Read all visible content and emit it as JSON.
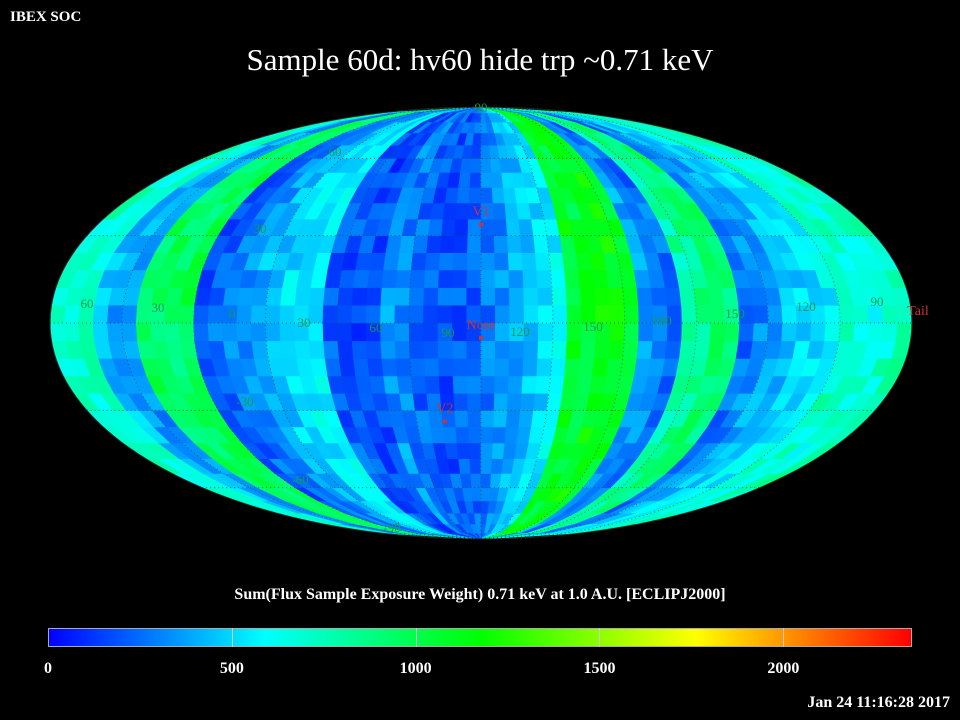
{
  "header": {
    "org_label": "IBEX SOC"
  },
  "map": {
    "title": "Sample 60d: hv60 hide trp ~0.71 keV",
    "projection": "Mollweide",
    "lat_labels": [
      "60",
      "30",
      "-30",
      "-60",
      "90",
      "-90"
    ],
    "lon_labels": [
      "60",
      "30",
      "0",
      "30",
      "60",
      "90",
      "120",
      "150",
      "180",
      "150",
      "120",
      "90"
    ],
    "markers": [
      {
        "label": "V1",
        "lon_deg": 0,
        "lat_deg": 34
      },
      {
        "label": "Nose",
        "lon_deg": 0,
        "lat_deg": -5
      },
      {
        "label": "V2",
        "lon_deg": -17,
        "lat_deg": -34
      },
      {
        "label": "Tail",
        "lon_deg": 180,
        "lat_deg": 0
      }
    ],
    "marker_color": "#cc3333",
    "grid_label_color": "#1a9a4a"
  },
  "colorbar": {
    "title": "Sum(Flux Sample Exposure Weight)  0.71 keV at 1.0 A.U. [ECLIPJ2000]",
    "min": 0,
    "max": 2350,
    "tick_labels": [
      "0",
      "500",
      "1000",
      "1500",
      "2000"
    ],
    "colors": [
      "#0000ff",
      "#00ffff",
      "#00ff00",
      "#ffff00",
      "#ff0000"
    ]
  },
  "footer": {
    "timestamp": "Jan 24 11:16:28 2017"
  }
}
